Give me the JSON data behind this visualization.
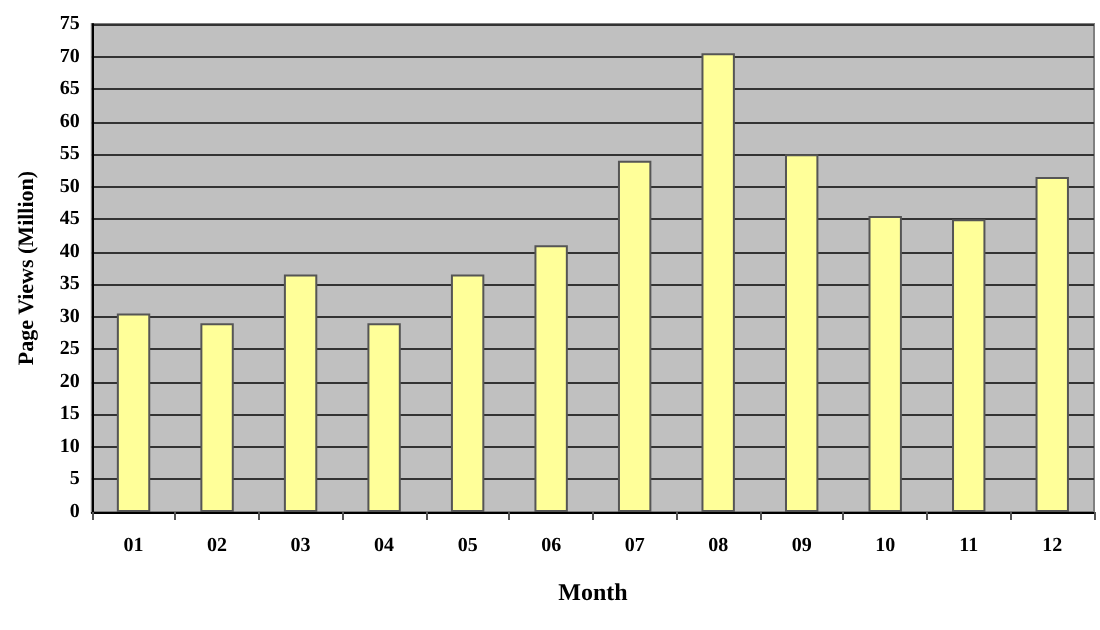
{
  "chart_data": {
    "type": "bar",
    "xlabel": "Month",
    "ylabel": "Page Views (Million)",
    "categories": [
      "01",
      "02",
      "03",
      "04",
      "05",
      "06",
      "07",
      "08",
      "09",
      "10",
      "11",
      "12"
    ],
    "values": [
      30.5,
      29,
      36.5,
      29,
      36.5,
      41,
      54,
      70.5,
      55,
      45.5,
      45,
      51.5
    ],
    "color": "#ffff99",
    "ylim": [
      0,
      75
    ],
    "yticks": [
      0,
      5,
      10,
      15,
      20,
      25,
      30,
      35,
      40,
      45,
      50,
      55,
      60,
      65,
      70,
      75
    ],
    "grid": "y"
  }
}
